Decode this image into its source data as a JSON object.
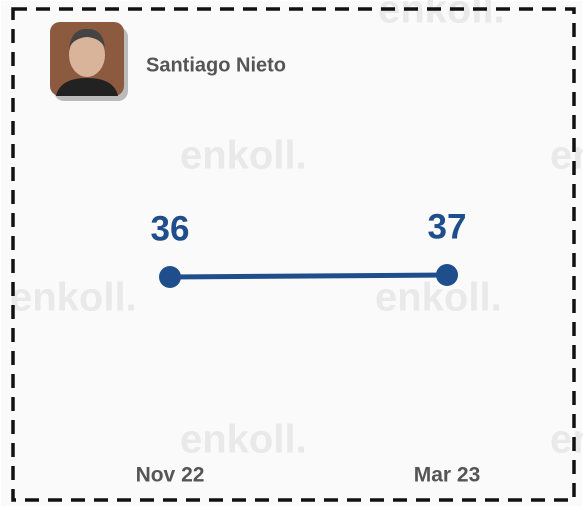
{
  "watermark": "enkoll.",
  "chart_data": {
    "type": "line",
    "categories": [
      "Nov 22",
      "Mar 23"
    ],
    "series": [
      {
        "name": "Santiago Nieto",
        "color": "#1f4e8c",
        "values": [
          36,
          37
        ]
      }
    ],
    "ylim": [
      0,
      100
    ]
  }
}
